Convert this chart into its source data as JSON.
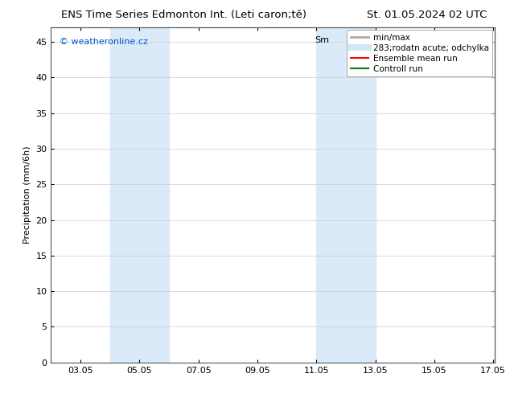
{
  "title_left": "ENS Time Series Edmonton Int. (Leti caron;tě)",
  "title_right": "St. 01.05.2024 02 UTC",
  "ylabel": "Precipitation (mm/6h)",
  "xlim": [
    2.0,
    17.05
  ],
  "ylim": [
    0,
    47
  ],
  "yticks": [
    0,
    5,
    10,
    15,
    20,
    25,
    30,
    35,
    40,
    45
  ],
  "xtick_labels": [
    "03.05",
    "05.05",
    "07.05",
    "09.05",
    "11.05",
    "13.05",
    "15.05",
    "17.05"
  ],
  "xtick_positions": [
    3.0,
    5.0,
    7.0,
    9.0,
    11.0,
    13.0,
    15.0,
    17.0
  ],
  "shaded_bands": [
    {
      "x_start": 4.0,
      "x_end": 6.0,
      "color": "#daeaf8"
    },
    {
      "x_start": 11.0,
      "x_end": 13.0,
      "color": "#daeaf8"
    }
  ],
  "legend_items": [
    {
      "label": "min/max",
      "color": "#aaaaaa",
      "lw": 2.0,
      "type": "line"
    },
    {
      "label": "283;rodatn acute; odchylka",
      "color": "#d0e8f8",
      "lw": 6,
      "type": "line"
    },
    {
      "label": "Ensemble mean run",
      "color": "#ff0000",
      "lw": 1.5,
      "type": "line"
    },
    {
      "label": "Controll run",
      "color": "#008000",
      "lw": 1.5,
      "type": "line"
    }
  ],
  "sm_label": "Sm",
  "watermark_text": "© weatheronline.cz",
  "watermark_color": "#0055cc",
  "bg_color": "#ffffff",
  "plot_bg_color": "#ffffff",
  "border_color": "#555555",
  "grid_color": "#cccccc",
  "font_size_title": 9.5,
  "font_size_axis": 8,
  "font_size_legend": 7.5,
  "font_size_watermark": 8,
  "font_size_sm": 8
}
